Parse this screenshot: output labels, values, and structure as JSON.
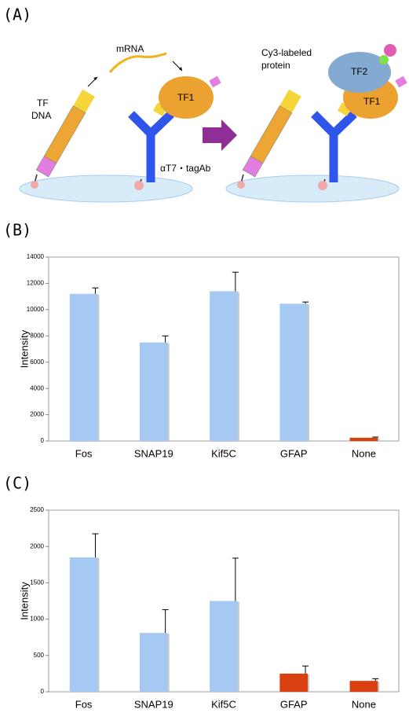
{
  "diagram": {
    "panel_label": "(A)",
    "mrna": "mRNA",
    "tf_dna": [
      "TF",
      "DNA"
    ],
    "tf1_left": "TF1",
    "antibody": "αT7・tagAb",
    "cy3": [
      "Cy3-labeled",
      "protein"
    ],
    "tf2": "TF2",
    "tf1_right": "TF1"
  },
  "chart_data": [
    {
      "type": "bar",
      "panel_label": "(B)",
      "y_label": "Intensity",
      "categories": [
        "Fos",
        "SNAP19",
        "Kif5C",
        "GFAP",
        "None"
      ],
      "values": [
        11200,
        7500,
        11400,
        10450,
        250
      ],
      "errors": [
        450,
        500,
        1450,
        130,
        50
      ],
      "colors": [
        "#a6c9f3",
        "#a6c9f3",
        "#a6c9f3",
        "#a6c9f3",
        "#d9400f"
      ],
      "ylim": [
        0,
        14000
      ],
      "yticks": [
        0,
        2000,
        4000,
        6000,
        8000,
        10000,
        12000,
        14000
      ],
      "grid": false
    },
    {
      "type": "bar",
      "panel_label": "(C)",
      "y_label": "Intensity",
      "categories": [
        "Fos",
        "SNAP19",
        "Kif5C",
        "GFAP",
        "None"
      ],
      "values": [
        1850,
        810,
        1250,
        250,
        150
      ],
      "errors": [
        325,
        320,
        590,
        105,
        30
      ],
      "colors": [
        "#a6c9f3",
        "#a6c9f3",
        "#a6c9f3",
        "#d9400f",
        "#d9400f"
      ],
      "ylim": [
        0,
        2500
      ],
      "yticks": [
        0,
        500,
        1000,
        1500,
        2000,
        2500
      ],
      "grid": false
    }
  ]
}
